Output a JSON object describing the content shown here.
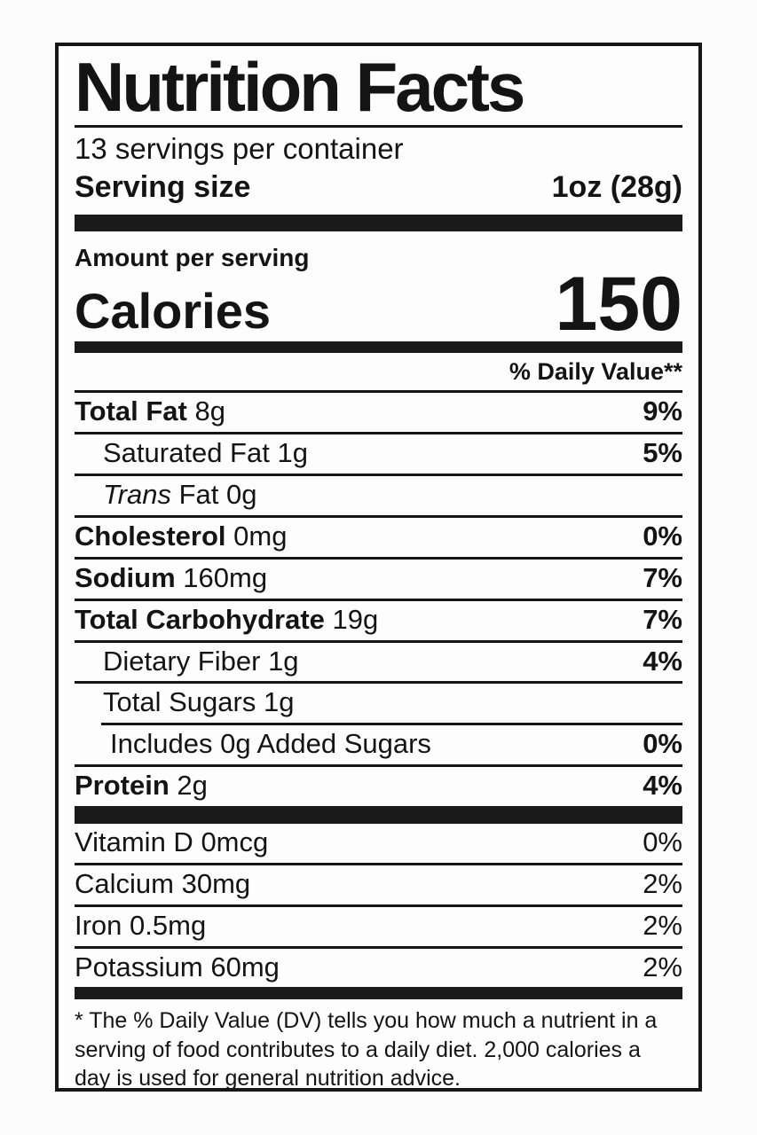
{
  "label": {
    "title": "Nutrition Facts",
    "servings_per_container": "13 servings per container",
    "serving_size_label": "Serving size",
    "serving_size_value": "1oz (28g)",
    "amount_per_serving": "Amount per serving",
    "calories_label": "Calories",
    "calories_value": "150",
    "daily_value_header": "% Daily Value**",
    "nutrients": [
      {
        "name": "Total Fat",
        "amount": "8g",
        "dv": "9%",
        "bold": true,
        "indent": 0
      },
      {
        "name": "Saturated Fat",
        "amount": "1g",
        "dv": "5%",
        "bold": false,
        "indent": 1
      },
      {
        "name": "Fat",
        "italic_prefix": "Trans",
        "amount": "0g",
        "dv": "",
        "bold": false,
        "indent": 1
      },
      {
        "name": "Cholesterol",
        "amount": "0mg",
        "dv": "0%",
        "bold": true,
        "indent": 0
      },
      {
        "name": "Sodium",
        "amount": "160mg",
        "dv": "7%",
        "bold": true,
        "indent": 0
      },
      {
        "name": "Total Carbohydrate",
        "amount": "19g",
        "dv": "7%",
        "bold": true,
        "indent": 0
      },
      {
        "name": "Dietary Fiber",
        "amount": "1g",
        "dv": "4%",
        "bold": false,
        "indent": 1
      },
      {
        "name": "Total Sugars",
        "amount": "1g",
        "dv": "",
        "bold": false,
        "indent": 1
      },
      {
        "name": "Includes 0g Added Sugars",
        "amount": "",
        "dv": "0%",
        "bold": false,
        "indent": 2,
        "separator_indented": true
      },
      {
        "name": "Protein",
        "amount": "2g",
        "dv": "4%",
        "bold": true,
        "indent": 0
      }
    ],
    "vitamins": [
      {
        "name": "Vitamin D",
        "amount": "0mcg",
        "dv": "0%"
      },
      {
        "name": "Calcium",
        "amount": "30mg",
        "dv": "2%"
      },
      {
        "name": "Iron",
        "amount": "0.5mg",
        "dv": "2%"
      },
      {
        "name": "Potassium",
        "amount": "60mg",
        "dv": "2%"
      }
    ],
    "footnote": "* The % Daily Value (DV) tells you how much a nutrient in a serving of food contributes to a daily diet. 2,000 calories a day is used for general nutrition advice.",
    "colors": {
      "ink": "#141414",
      "bar": "#1a1a1a",
      "label_bg": "#fdfdfd",
      "page_bg": "#fbfbfb"
    }
  }
}
